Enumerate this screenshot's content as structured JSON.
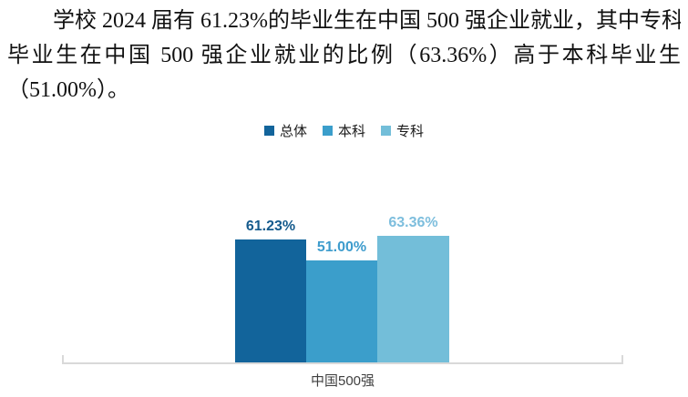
{
  "paragraph": {
    "lines": [
      "学校 2024 届有 61.23%的毕业生在中国 500 强企业就业，其中专科",
      "毕业生在中国 500 强企业就业的比例（63.36%）高于本科毕业生",
      "（51.00%）。"
    ]
  },
  "chart_data": {
    "type": "bar",
    "title": "",
    "categories": [
      "中国500强"
    ],
    "series": [
      {
        "name": "总体",
        "values": [
          61.23
        ],
        "label": "61.23%",
        "color": "#12649b",
        "label_color": "#155b8d"
      },
      {
        "name": "本科",
        "values": [
          51.0
        ],
        "label": "51.00%",
        "color": "#3b9ecb",
        "label_color": "#3e9ccd"
      },
      {
        "name": "专科",
        "values": [
          63.36
        ],
        "label": "63.36%",
        "color": "#73bed9",
        "label_color": "#7dbedd"
      }
    ],
    "xlabel": "",
    "ylabel": "",
    "ylim": [
      0,
      70
    ],
    "grid": false,
    "legend_position": "top",
    "data_labels": true,
    "axis_line_color": "#d9d9d9"
  }
}
